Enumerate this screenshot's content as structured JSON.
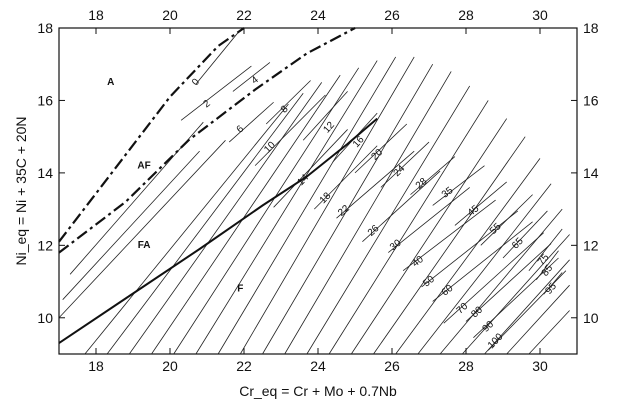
{
  "chart_data": {
    "type": "line",
    "title": "",
    "xlabel": "Cr_eq = Cr + Mo + 0.7Nb",
    "ylabel": "Ni_eq = Ni + 35C + 20N",
    "xlim": [
      17,
      31
    ],
    "ylim": [
      9,
      18
    ],
    "x_ticks": [
      "18",
      "20",
      "22",
      "24",
      "26",
      "28",
      "30"
    ],
    "y_ticks": [
      "10",
      "12",
      "14",
      "16",
      "18"
    ],
    "grid": false,
    "regions": [
      {
        "name": "A",
        "label": "A",
        "x": 18.4,
        "y": 16.5
      },
      {
        "name": "AF",
        "label": "AF",
        "x": 19.3,
        "y": 14.2
      },
      {
        "name": "FA",
        "label": "FA",
        "x": 19.3,
        "y": 12.0
      },
      {
        "name": "F",
        "label": "F",
        "x": 21.9,
        "y": 10.8
      }
    ],
    "boundaries": [
      {
        "name": "A/AF boundary",
        "style": "dash-dot",
        "points": [
          [
            17.0,
            12.1
          ],
          [
            18.5,
            14.1
          ],
          [
            20.0,
            16.1
          ],
          [
            21.3,
            17.5
          ],
          [
            22.0,
            18.0
          ]
        ]
      },
      {
        "name": "AF/FA boundary",
        "style": "dash-dot",
        "points": [
          [
            17.0,
            11.8
          ],
          [
            18.8,
            13.2
          ],
          [
            20.5,
            14.9
          ],
          [
            22.3,
            16.3
          ],
          [
            23.7,
            17.3
          ],
          [
            25.0,
            18.0
          ]
        ]
      },
      {
        "name": "FA/F boundary",
        "style": "solid-bold",
        "points": [
          [
            17.0,
            9.3
          ],
          [
            18.9,
            10.6
          ],
          [
            20.8,
            11.9
          ],
          [
            22.5,
            13.1
          ],
          [
            23.7,
            13.9
          ],
          [
            24.8,
            14.8
          ],
          [
            25.6,
            15.5
          ]
        ]
      }
    ],
    "iso_ferrite_lines": [
      {
        "label": "0",
        "p1": [
          20.7,
          16.45
        ],
        "p2": [
          21.9,
          17.95
        ],
        "lx": 20.7,
        "ly": 16.5
      },
      {
        "label": "2",
        "p1": [
          20.3,
          15.45
        ],
        "p2": [
          22.2,
          16.95
        ],
        "lx": 21.0,
        "ly": 15.9
      },
      {
        "label": "4",
        "p1": [
          21.7,
          16.25
        ],
        "p2": [
          22.7,
          17.05
        ],
        "lx": 22.3,
        "ly": 16.55
      },
      {
        "label": "6",
        "p1": [
          21.6,
          14.85
        ],
        "p2": [
          22.8,
          15.95
        ],
        "lx": 21.9,
        "ly": 15.2
      },
      {
        "label": "8",
        "p1": [
          22.6,
          15.35
        ],
        "p2": [
          23.8,
          16.55
        ],
        "lx": 23.1,
        "ly": 15.75
      },
      {
        "label": "10",
        "p1": [
          22.3,
          14.2
        ],
        "p2": [
          24.2,
          16.15
        ],
        "lx": 22.7,
        "ly": 14.7
      },
      {
        "label": "12",
        "p1": [
          23.6,
          14.9
        ],
        "p2": [
          24.8,
          16.25
        ],
        "lx": 24.3,
        "ly": 15.25
      },
      {
        "label": "14",
        "p1": [
          22.8,
          13.05
        ],
        "p2": [
          24.8,
          15.2
        ],
        "lx": 23.6,
        "ly": 13.8
      },
      {
        "label": "16",
        "p1": [
          24.4,
          14.3
        ],
        "p2": [
          25.6,
          15.65
        ],
        "lx": 25.1,
        "ly": 14.85
      },
      {
        "label": "18",
        "p1": [
          23.9,
          13.0
        ],
        "p2": [
          25.6,
          14.75
        ],
        "lx": 24.2,
        "ly": 13.3
      },
      {
        "label": "20",
        "p1": [
          25.0,
          14.0
        ],
        "p2": [
          26.4,
          15.35
        ],
        "lx": 25.6,
        "ly": 14.5
      },
      {
        "label": "22",
        "p1": [
          24.5,
          12.75
        ],
        "p2": [
          26.6,
          14.6
        ],
        "lx": 24.7,
        "ly": 12.95
      },
      {
        "label": "24",
        "p1": [
          25.7,
          13.6
        ],
        "p2": [
          27.0,
          14.85
        ],
        "lx": 26.2,
        "ly": 14.05
      },
      {
        "label": "26",
        "p1": [
          25.2,
          12.1
        ],
        "p2": [
          27.3,
          14.05
        ],
        "lx": 25.5,
        "ly": 12.4
      },
      {
        "label": "28",
        "p1": [
          26.5,
          13.4
        ],
        "p2": [
          27.7,
          14.45
        ],
        "lx": 26.8,
        "ly": 13.7
      },
      {
        "label": "30",
        "p1": [
          25.9,
          11.8
        ],
        "p2": [
          28.1,
          13.6
        ],
        "lx": 26.1,
        "ly": 12.0
      },
      {
        "label": "35",
        "p1": [
          27.1,
          13.1
        ],
        "p2": [
          28.5,
          14.2
        ],
        "lx": 27.5,
        "ly": 13.45
      },
      {
        "label": "40",
        "p1": [
          26.3,
          11.3
        ],
        "p2": [
          28.8,
          13.25
        ],
        "lx": 26.7,
        "ly": 11.55
      },
      {
        "label": "45",
        "p1": [
          27.7,
          12.55
        ],
        "p2": [
          29.1,
          13.75
        ],
        "lx": 28.2,
        "ly": 12.95
      },
      {
        "label": "50",
        "p1": [
          26.8,
          10.85
        ],
        "p2": [
          29.4,
          12.95
        ],
        "lx": 27.0,
        "ly": 11.0
      },
      {
        "label": "55",
        "p1": [
          28.4,
          12.0
        ],
        "p2": [
          29.8,
          13.4
        ],
        "lx": 28.8,
        "ly": 12.45
      },
      {
        "label": "60",
        "p1": [
          27.1,
          10.45
        ],
        "p2": [
          29.8,
          12.65
        ],
        "lx": 27.5,
        "ly": 10.75
      },
      {
        "label": "65",
        "p1": [
          29.0,
          11.65
        ],
        "p2": [
          30.2,
          12.95
        ],
        "lx": 29.4,
        "ly": 12.05
      },
      {
        "label": "70",
        "p1": [
          27.4,
          9.85
        ],
        "p2": [
          30.1,
          12.35
        ],
        "lx": 27.9,
        "ly": 10.25
      },
      {
        "label": "75",
        "p1": [
          29.7,
          11.3
        ],
        "p2": [
          30.6,
          12.45
        ],
        "lx": 30.1,
        "ly": 11.6
      },
      {
        "label": "80",
        "p1": [
          28.0,
          9.9
        ],
        "p2": [
          30.3,
          12.05
        ],
        "lx": 28.3,
        "ly": 10.15
      },
      {
        "label": "85",
        "p1": [
          29.9,
          11.05
        ],
        "p2": [
          30.5,
          11.85
        ],
        "lx": 30.2,
        "ly": 11.3
      },
      {
        "label": "90",
        "p1": [
          28.2,
          9.45
        ],
        "p2": [
          30.5,
          11.65
        ],
        "lx": 28.6,
        "ly": 9.75
      },
      {
        "label": "95",
        "p1": [
          30.1,
          10.65
        ],
        "p2": [
          30.6,
          11.25
        ],
        "lx": 30.3,
        "ly": 10.8
      },
      {
        "label": "100",
        "p1": [
          28.6,
          9.1
        ],
        "p2": [
          30.7,
          11.3
        ],
        "lx": 28.8,
        "ly": 9.35
      }
    ],
    "background_lines": [
      {
        "p1": [
          17.0,
          10.0
        ],
        "p2": [
          21.5,
          14.9
        ]
      },
      {
        "p1": [
          17.1,
          10.5
        ],
        "p2": [
          20.8,
          14.6
        ]
      },
      {
        "p1": [
          17.3,
          11.2
        ],
        "p2": [
          20.9,
          15.4
        ]
      },
      {
        "p1": [
          17.7,
          9.0
        ],
        "p2": [
          23.2,
          15.9
        ]
      },
      {
        "p1": [
          18.3,
          9.0
        ],
        "p2": [
          23.6,
          16.2
        ]
      },
      {
        "p1": [
          18.9,
          9.0
        ],
        "p2": [
          24.1,
          16.5
        ]
      },
      {
        "p1": [
          19.5,
          9.0
        ],
        "p2": [
          24.6,
          16.7
        ]
      },
      {
        "p1": [
          20.1,
          9.0
        ],
        "p2": [
          25.1,
          16.9
        ]
      },
      {
        "p1": [
          20.7,
          9.0
        ],
        "p2": [
          25.6,
          17.1
        ]
      },
      {
        "p1": [
          21.3,
          9.0
        ],
        "p2": [
          26.1,
          17.2
        ]
      },
      {
        "p1": [
          21.9,
          9.0
        ],
        "p2": [
          26.6,
          17.2
        ]
      },
      {
        "p1": [
          22.5,
          9.0
        ],
        "p2": [
          27.1,
          17.0
        ]
      },
      {
        "p1": [
          23.1,
          9.0
        ],
        "p2": [
          27.6,
          16.8
        ]
      },
      {
        "p1": [
          23.7,
          9.0
        ],
        "p2": [
          28.1,
          16.4
        ]
      },
      {
        "p1": [
          24.3,
          9.0
        ],
        "p2": [
          28.6,
          16.0
        ]
      },
      {
        "p1": [
          24.9,
          9.0
        ],
        "p2": [
          29.1,
          15.5
        ]
      },
      {
        "p1": [
          25.5,
          9.0
        ],
        "p2": [
          29.6,
          15.0
        ]
      },
      {
        "p1": [
          26.1,
          9.0
        ],
        "p2": [
          30.0,
          14.4
        ]
      },
      {
        "p1": [
          26.7,
          9.0
        ],
        "p2": [
          30.3,
          13.7
        ]
      },
      {
        "p1": [
          27.3,
          9.0
        ],
        "p2": [
          30.6,
          13.0
        ]
      },
      {
        "p1": [
          27.9,
          9.0
        ],
        "p2": [
          30.8,
          12.3
        ]
      },
      {
        "p1": [
          28.5,
          9.0
        ],
        "p2": [
          30.8,
          11.6
        ]
      },
      {
        "p1": [
          29.1,
          9.0
        ],
        "p2": [
          30.8,
          10.9
        ]
      },
      {
        "p1": [
          29.7,
          9.0
        ],
        "p2": [
          30.8,
          10.2
        ]
      }
    ]
  }
}
